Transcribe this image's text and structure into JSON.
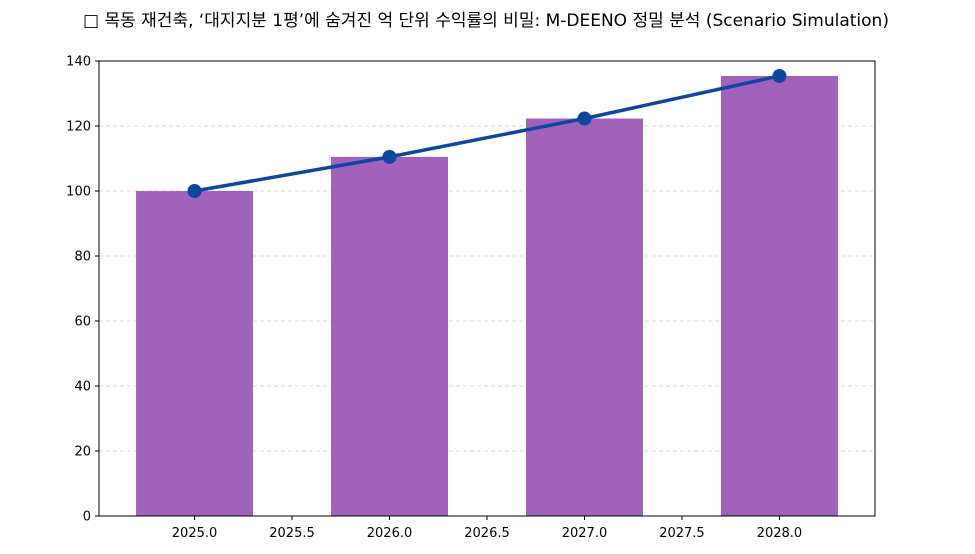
{
  "chart_data": {
    "type": "bar+line",
    "title": "□ 목동 재건축, ‘대지지분 1평’에 숨겨진 억 단위 수익률의 비밀: M-DEENO 정밀 분석 (Scenario Simulation)",
    "xlabel": "",
    "ylabel": "",
    "x": [
      2025,
      2026,
      2027,
      2028
    ],
    "bar_values": [
      100,
      110.5,
      122.3,
      135.4
    ],
    "line_values": [
      100,
      110.5,
      122.3,
      135.4
    ],
    "xlim": [
      2024.51,
      2028.49
    ],
    "ylim": [
      0,
      140
    ],
    "xticks": [
      2025.0,
      2025.5,
      2026.0,
      2026.5,
      2027.0,
      2027.5,
      2028.0
    ],
    "xtick_labels": [
      "2025.0",
      "2025.5",
      "2026.0",
      "2026.5",
      "2027.0",
      "2027.5",
      "2028.0"
    ],
    "yticks": [
      0,
      20,
      40,
      60,
      80,
      100,
      120,
      140
    ],
    "ytick_labels": [
      "0",
      "20",
      "40",
      "60",
      "80",
      "100",
      "120",
      "140"
    ],
    "bar_width": 0.6,
    "grid": "y-dashed",
    "legend": "none",
    "colors": {
      "bar": "#a162bc",
      "line": "#0d47a1",
      "grid": "#d0d0d0"
    }
  }
}
